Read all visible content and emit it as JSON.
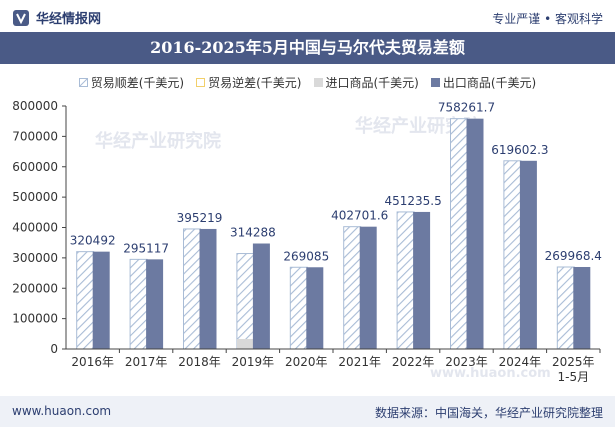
{
  "header": {
    "logo_text": "华经情报网",
    "tagline": "专业严谨 • 客观科学"
  },
  "watermark": {
    "text": "华经产业研究院",
    "url": "www.huaon.com"
  },
  "footer": {
    "site": "www.huaon.com",
    "source": "数据来源：中国海关，华经产业研究院整理"
  },
  "colors": {
    "title_bg": "#4a5a86",
    "export": "#6c7aa1",
    "import": "#d9d9d9",
    "surplus_hatch": "#a9bcd6",
    "deficit": "#f2d06b"
  },
  "chart_data": {
    "type": "bar",
    "title": "2016-2025年5月中国与马尔代夫贸易差额",
    "categories": [
      "2016年",
      "2017年",
      "2018年",
      "2019年",
      "2020年",
      "2021年",
      "2022年",
      "2023年",
      "2024年",
      "2025年\n1-5月"
    ],
    "series": [
      {
        "name": "贸易顺差(千美元)",
        "values": [
          320492,
          295117,
          395219,
          314288,
          269085,
          402701.6,
          451235.5,
          758261.7,
          619602.3,
          269968.4
        ],
        "style": "hatched"
      },
      {
        "name": "贸易逆差(千美元)",
        "values": [
          0,
          0,
          0,
          0,
          0,
          0,
          0,
          0,
          0,
          0
        ],
        "style": "solid"
      },
      {
        "name": "进口商品(千美元)",
        "values": [
          0,
          0,
          0,
          33000,
          0,
          0,
          0,
          0,
          0,
          0
        ],
        "style": "solid"
      },
      {
        "name": "出口商品(千美元)",
        "values": [
          320492,
          295117,
          395219,
          347288,
          269085,
          402701.6,
          451235.5,
          758261.7,
          619602.3,
          269968.4
        ],
        "style": "solid"
      }
    ],
    "data_labels": [
      "320492",
      "295117",
      "395219",
      "314288",
      "269085",
      "402701.6",
      "451235.5",
      "758261.7",
      "619602.3",
      "269968.4"
    ],
    "ylim": [
      0,
      800000
    ],
    "yticks": [
      0,
      100000,
      200000,
      300000,
      400000,
      500000,
      600000,
      700000,
      800000
    ],
    "legend_position": "top",
    "grid": false
  }
}
